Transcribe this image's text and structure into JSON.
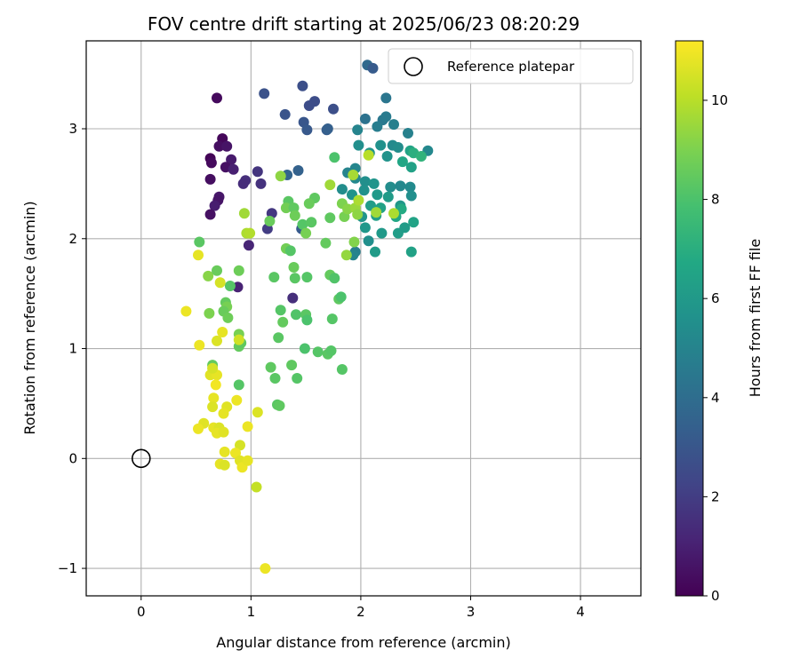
{
  "chart_data": {
    "type": "scatter",
    "title": "FOV centre drift starting at 2025/06/23 08:20:29",
    "xlabel": "Angular distance from reference (arcmin)",
    "ylabel": "Rotation from reference (arcmin)",
    "xlim": [
      -0.5,
      4.55
    ],
    "ylim": [
      -1.25,
      3.8
    ],
    "xticks": [
      0,
      1,
      2,
      3,
      4
    ],
    "xtick_labels": [
      "0",
      "1",
      "2",
      "3",
      "4"
    ],
    "yticks": [
      -1,
      0,
      1,
      2,
      3
    ],
    "ytick_labels": [
      "−1",
      "0",
      "1",
      "2",
      "3"
    ],
    "grid": true,
    "legend": {
      "position": "top-right",
      "entries": [
        "Reference platepar"
      ]
    },
    "colorbar": {
      "label": "Hours from first FF file",
      "colormap": "viridis",
      "range": [
        0,
        11.2
      ],
      "ticks": [
        0,
        2,
        4,
        6,
        8,
        10
      ],
      "tick_labels": [
        "0",
        "2",
        "4",
        "6",
        "8",
        "10"
      ]
    },
    "reference_point": {
      "name": "Reference platepar",
      "x": 0,
      "y": 0
    },
    "series": [
      {
        "columns": [
          "x",
          "y",
          "hours"
        ],
        "points": [
          [
            0.69,
            3.28,
            0.3
          ],
          [
            0.74,
            2.91,
            0.2
          ],
          [
            0.71,
            2.84,
            0.4
          ],
          [
            0.78,
            2.84,
            0.6
          ],
          [
            0.63,
            2.73,
            0.1
          ],
          [
            0.64,
            2.69,
            0.3
          ],
          [
            0.82,
            2.72,
            0.8
          ],
          [
            0.77,
            2.65,
            0.5
          ],
          [
            0.84,
            2.63,
            1.0
          ],
          [
            0.63,
            2.54,
            0.4
          ],
          [
            0.71,
            2.38,
            0.7
          ],
          [
            0.7,
            2.35,
            0.6
          ],
          [
            0.67,
            2.3,
            0.9
          ],
          [
            0.63,
            2.22,
            0.5
          ],
          [
            0.95,
            2.53,
            1.5
          ],
          [
            0.93,
            2.5,
            1.4
          ],
          [
            1.06,
            2.61,
            1.7
          ],
          [
            1.09,
            2.5,
            1.6
          ],
          [
            1.19,
            2.23,
            1.8
          ],
          [
            0.98,
            1.94,
            1.2
          ],
          [
            1.15,
            2.09,
            2.0
          ],
          [
            0.88,
            1.56,
            1.1
          ],
          [
            1.38,
            1.46,
            1.5
          ],
          [
            1.12,
            3.32,
            2.8
          ],
          [
            1.47,
            3.39,
            2.7
          ],
          [
            1.58,
            3.25,
            2.6
          ],
          [
            1.53,
            3.21,
            2.6
          ],
          [
            1.31,
            3.13,
            2.9
          ],
          [
            1.48,
            3.06,
            3.0
          ],
          [
            1.51,
            2.99,
            3.1
          ],
          [
            1.69,
            2.99,
            3.3
          ],
          [
            1.75,
            3.18,
            2.7
          ],
          [
            1.7,
            3.0,
            3.4
          ],
          [
            1.43,
            2.62,
            3.5
          ],
          [
            1.33,
            2.58,
            3.6
          ],
          [
            1.46,
            2.09,
            3.2
          ],
          [
            2.06,
            3.58,
            3.8
          ],
          [
            2.11,
            3.55,
            3.2
          ],
          [
            2.23,
            3.28,
            4.4
          ],
          [
            2.04,
            3.09,
            4.2
          ],
          [
            2.2,
            3.08,
            4.5
          ],
          [
            2.23,
            3.11,
            4.6
          ],
          [
            2.3,
            3.04,
            4.8
          ],
          [
            2.15,
            3.02,
            4.7
          ],
          [
            2.43,
            2.96,
            4.9
          ],
          [
            1.97,
            2.99,
            5.0
          ],
          [
            1.98,
            2.85,
            5.5
          ],
          [
            2.18,
            2.85,
            5.6
          ],
          [
            2.29,
            2.85,
            5.3
          ],
          [
            2.34,
            2.83,
            5.4
          ],
          [
            2.24,
            2.75,
            5.7
          ],
          [
            2.08,
            2.78,
            5.8
          ],
          [
            2.45,
            2.8,
            6.5
          ],
          [
            2.61,
            2.8,
            5.2
          ],
          [
            2.38,
            2.7,
            6.6
          ],
          [
            2.46,
            2.65,
            6.4
          ],
          [
            1.95,
            2.64,
            5.1
          ],
          [
            1.88,
            2.6,
            5.0
          ],
          [
            1.95,
            2.55,
            5.2
          ],
          [
            2.04,
            2.52,
            5.5
          ],
          [
            2.12,
            2.5,
            5.8
          ],
          [
            2.27,
            2.47,
            5.4
          ],
          [
            2.36,
            2.48,
            5.2
          ],
          [
            2.45,
            2.47,
            5.3
          ],
          [
            2.03,
            2.44,
            5.6
          ],
          [
            2.15,
            2.4,
            6.0
          ],
          [
            2.25,
            2.38,
            6.1
          ],
          [
            2.46,
            2.39,
            5.5
          ],
          [
            1.83,
            2.45,
            5.4
          ],
          [
            1.92,
            2.4,
            5.7
          ],
          [
            2.09,
            2.3,
            6.2
          ],
          [
            2.18,
            2.28,
            6.4
          ],
          [
            2.36,
            2.3,
            5.9
          ],
          [
            2.01,
            2.2,
            5.8
          ],
          [
            2.14,
            2.21,
            6.3
          ],
          [
            2.32,
            2.2,
            6.6
          ],
          [
            2.48,
            2.15,
            6.5
          ],
          [
            2.04,
            2.1,
            5.9
          ],
          [
            2.19,
            2.05,
            6.0
          ],
          [
            2.34,
            2.05,
            6.2
          ],
          [
            2.4,
            2.1,
            6.1
          ],
          [
            2.07,
            1.98,
            5.5
          ],
          [
            1.95,
            1.88,
            4.8
          ],
          [
            1.93,
            1.85,
            5.0
          ],
          [
            2.13,
            1.88,
            6.1
          ],
          [
            2.46,
            1.88,
            6.4
          ],
          [
            2.37,
            2.27,
            6.8
          ],
          [
            2.48,
            2.78,
            7.0
          ],
          [
            2.55,
            2.75,
            7.2
          ],
          [
            1.27,
            2.57,
            9.3
          ],
          [
            1.17,
            2.16,
            8.6
          ],
          [
            1.34,
            2.34,
            8.3
          ],
          [
            1.32,
            2.28,
            8.8
          ],
          [
            1.39,
            2.28,
            8.4
          ],
          [
            1.4,
            2.21,
            8.7
          ],
          [
            1.47,
            2.13,
            8.2
          ],
          [
            1.58,
            2.37,
            8.4
          ],
          [
            1.53,
            2.32,
            8.6
          ],
          [
            1.55,
            2.15,
            8.3
          ],
          [
            1.5,
            2.05,
            8.9
          ],
          [
            1.32,
            1.91,
            8.8
          ],
          [
            1.36,
            1.89,
            8.2
          ],
          [
            1.68,
            1.96,
            8.5
          ],
          [
            1.76,
            2.74,
            8.0
          ],
          [
            1.72,
            2.49,
            9.6
          ],
          [
            1.72,
            2.19,
            8.4
          ],
          [
            1.85,
            2.2,
            8.9
          ],
          [
            1.83,
            2.32,
            9.0
          ],
          [
            1.88,
            2.27,
            9.2
          ],
          [
            1.95,
            2.28,
            9.5
          ],
          [
            1.98,
            2.35,
            9.8
          ],
          [
            1.93,
            2.58,
            9.7
          ],
          [
            1.97,
            2.22,
            9.3
          ],
          [
            2.07,
            2.76,
            10.0
          ],
          [
            2.14,
            2.24,
            9.6
          ],
          [
            2.3,
            2.23,
            9.8
          ],
          [
            1.87,
            1.85,
            9.4
          ],
          [
            1.94,
            1.97,
            9.1
          ],
          [
            1.39,
            1.74,
            8.6
          ],
          [
            1.4,
            1.64,
            8.3
          ],
          [
            1.51,
            1.65,
            8.2
          ],
          [
            1.72,
            1.67,
            8.5
          ],
          [
            1.76,
            1.64,
            8.1
          ],
          [
            1.8,
            1.45,
            8.4
          ],
          [
            1.82,
            1.47,
            8.0
          ],
          [
            1.21,
            1.65,
            8.3
          ],
          [
            1.27,
            1.35,
            8.2
          ],
          [
            1.29,
            1.24,
            8.5
          ],
          [
            1.41,
            1.31,
            8.1
          ],
          [
            1.5,
            1.31,
            8.3
          ],
          [
            1.51,
            1.26,
            8.0
          ],
          [
            1.74,
            1.27,
            8.2
          ],
          [
            1.25,
            1.1,
            8.3
          ],
          [
            1.49,
            1.0,
            8.0
          ],
          [
            1.61,
            0.97,
            8.2
          ],
          [
            1.7,
            0.95,
            8.3
          ],
          [
            1.73,
            0.98,
            8.2
          ],
          [
            1.37,
            0.85,
            8.4
          ],
          [
            1.83,
            0.81,
            8.2
          ],
          [
            1.18,
            0.83,
            8.4
          ],
          [
            1.22,
            0.73,
            8.3
          ],
          [
            1.42,
            0.73,
            8.2
          ],
          [
            1.24,
            0.49,
            8.3
          ],
          [
            1.26,
            0.48,
            8.4
          ],
          [
            0.94,
            2.23,
            9.6
          ],
          [
            0.96,
            2.05,
            9.8
          ],
          [
            0.99,
            2.05,
            9.9
          ],
          [
            0.89,
            1.71,
            8.7
          ],
          [
            0.81,
            1.57,
            8.2
          ],
          [
            0.53,
            1.97,
            8.3
          ],
          [
            0.61,
            1.66,
            9.2
          ],
          [
            0.69,
            1.71,
            8.6
          ],
          [
            0.77,
            1.42,
            8.5
          ],
          [
            0.78,
            1.38,
            8.9
          ],
          [
            0.62,
            1.32,
            9.0
          ],
          [
            0.75,
            1.34,
            8.6
          ],
          [
            0.79,
            1.28,
            8.7
          ],
          [
            0.89,
            1.13,
            8.9
          ],
          [
            0.89,
            1.02,
            8.5
          ],
          [
            0.91,
            1.05,
            8.4
          ],
          [
            0.89,
            0.67,
            8.2
          ],
          [
            0.65,
            0.85,
            8.5
          ],
          [
            0.52,
            1.85,
            10.8
          ],
          [
            0.41,
            1.34,
            10.9
          ],
          [
            0.72,
            1.6,
            10.5
          ],
          [
            0.74,
            1.15,
            10.8
          ],
          [
            0.69,
            1.07,
            10.6
          ],
          [
            0.53,
            1.03,
            10.9
          ],
          [
            0.89,
            1.08,
            10.4
          ],
          [
            0.63,
            0.76,
            10.7
          ],
          [
            0.69,
            0.76,
            10.8
          ],
          [
            0.65,
            0.82,
            10.5
          ],
          [
            0.68,
            0.67,
            11.0
          ],
          [
            0.66,
            0.55,
            10.8
          ],
          [
            0.65,
            0.47,
            10.6
          ],
          [
            0.78,
            0.47,
            10.7
          ],
          [
            0.87,
            0.53,
            10.9
          ],
          [
            0.75,
            0.41,
            10.8
          ],
          [
            1.06,
            0.42,
            10.6
          ],
          [
            0.57,
            0.32,
            10.7
          ],
          [
            0.52,
            0.27,
            10.9
          ],
          [
            0.66,
            0.28,
            10.8
          ],
          [
            0.71,
            0.28,
            10.6
          ],
          [
            0.69,
            0.23,
            10.8
          ],
          [
            0.75,
            0.24,
            10.7
          ],
          [
            0.97,
            0.29,
            10.9
          ],
          [
            0.9,
            0.12,
            10.5
          ],
          [
            0.76,
            0.06,
            10.8
          ],
          [
            0.86,
            0.05,
            10.9
          ],
          [
            0.9,
            -0.02,
            10.7
          ],
          [
            0.72,
            -0.05,
            10.8
          ],
          [
            0.76,
            -0.06,
            10.6
          ],
          [
            0.92,
            -0.08,
            10.9
          ],
          [
            0.97,
            -0.02,
            10.8
          ],
          [
            1.05,
            -0.26,
            10.2
          ],
          [
            1.13,
            -1.0,
            10.9
          ]
        ]
      }
    ]
  }
}
